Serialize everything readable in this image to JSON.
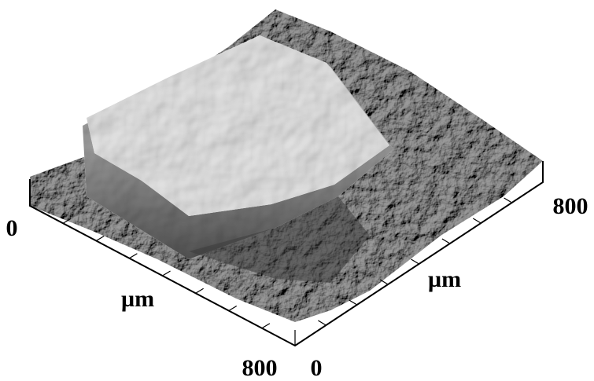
{
  "axes": {
    "left": {
      "start": "0",
      "end": "800",
      "label": "µm"
    },
    "right": {
      "start": "0",
      "end": "800",
      "label": "µm"
    }
  }
}
